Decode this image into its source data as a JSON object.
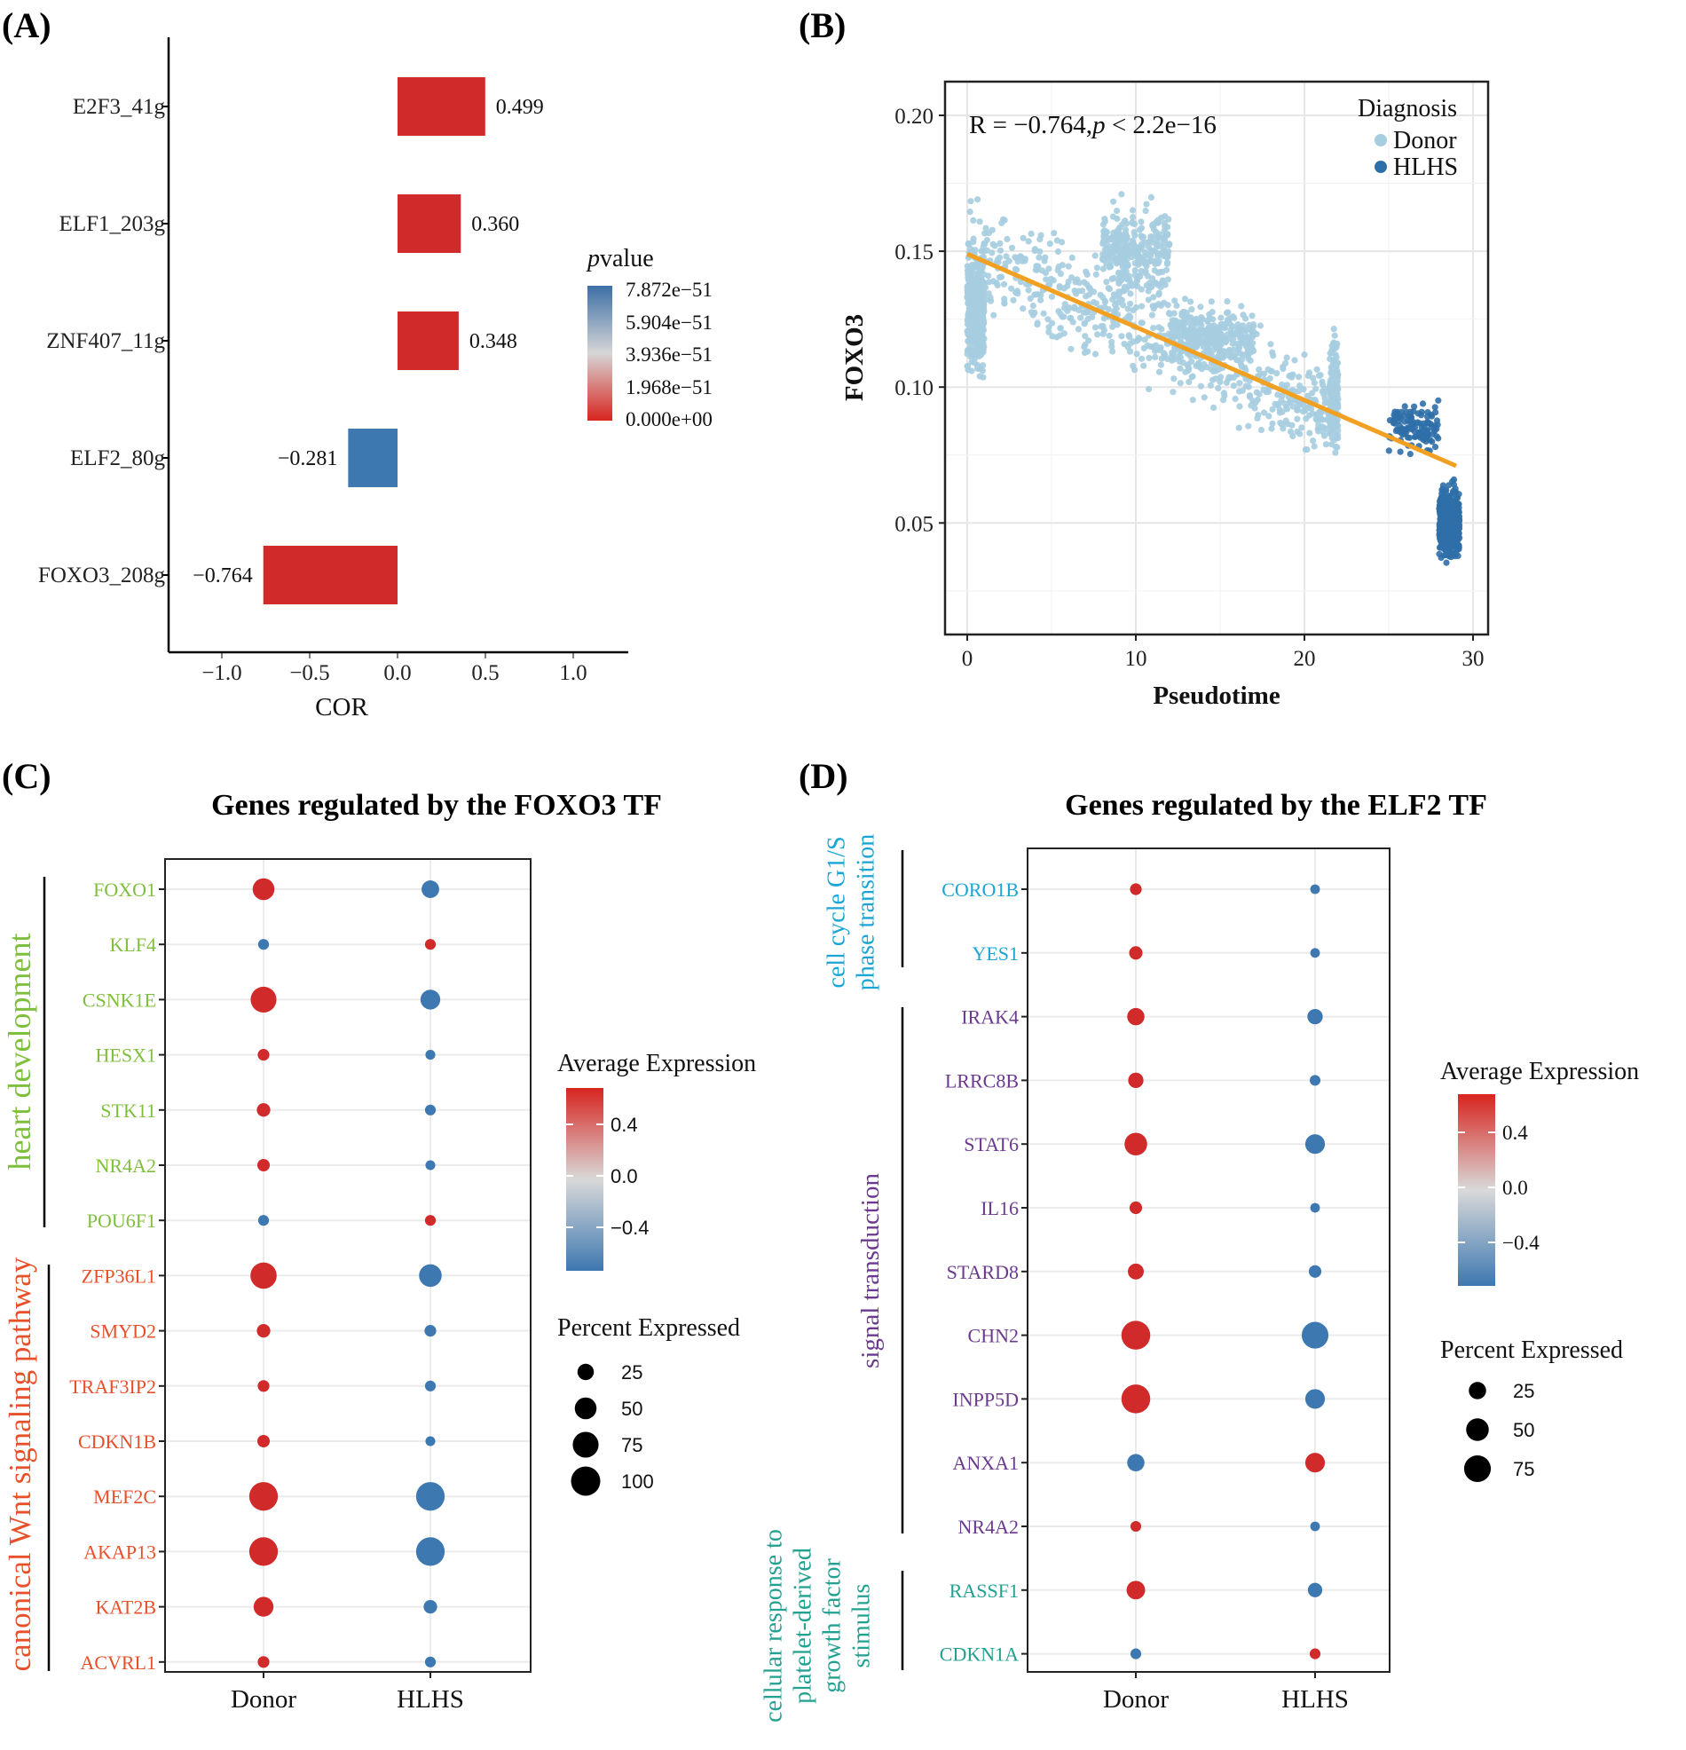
{
  "panels": {
    "A": "(A)",
    "B": "(B)",
    "C": "(C)",
    "D": "(D)"
  },
  "colors": {
    "red": "#D12A2A",
    "blue": "#3D78B0",
    "donor_point": "#A6CDE0",
    "hlhs_point": "#2F6FA8",
    "fit_line": "#F2A022",
    "green": "#7FBF3E",
    "orange": "#E8502A",
    "cyan": "#1BA5D6",
    "purple": "#6B3A8E",
    "teal": "#22A090"
  },
  "chart_data": [
    {
      "id": "A",
      "type": "bar",
      "orientation": "horizontal",
      "categories": [
        "E2F3_41g",
        "ELF1_203g",
        "ZNF407_11g",
        "ELF2_80g",
        "FOXO3_208g"
      ],
      "values": [
        0.499,
        0.36,
        0.348,
        -0.281,
        -0.764
      ],
      "value_labels": [
        "0.499",
        "0.360",
        "0.348",
        "−0.281",
        "−0.764"
      ],
      "fill": [
        "red",
        "red",
        "red",
        "blue",
        "red"
      ],
      "xlabel": "COR",
      "xlim": [
        -1.3,
        1.3
      ],
      "xticks": [
        -1.0,
        -0.5,
        0.0,
        0.5,
        1.0
      ],
      "xtick_labels": [
        "−1.0",
        "−0.5",
        "0.0",
        "0.5",
        "1.0"
      ],
      "legend": {
        "title_italic": "p",
        "title_rest": "value",
        "labels": [
          "7.872e−51",
          "5.904e−51",
          "3.936e−51",
          "1.968e−51",
          "0.000e+00"
        ]
      }
    },
    {
      "id": "B",
      "type": "scatter",
      "xlabel": "Pseudotime",
      "ylabel": "FOXO3",
      "xlim": [
        -1.5,
        31.5
      ],
      "ylim": [
        0.013,
        0.21
      ],
      "xticks": [
        0,
        10,
        20,
        30
      ],
      "xtick_labels": [
        "0",
        "10",
        "20",
        "30"
      ],
      "yticks": [
        0.05,
        0.1,
        0.15,
        0.2
      ],
      "ytick_labels": [
        "0.05",
        "0.10",
        "0.15",
        "0.20"
      ],
      "annotation": {
        "r_text": "R = −0.764,",
        "p_italic": "p",
        "p_rest": " < 2.2e−16"
      },
      "fit_line": {
        "x": [
          0,
          29
        ],
        "y": [
          0.149,
          0.071
        ]
      },
      "legend": {
        "title": "Diagnosis",
        "entries": [
          "Donor",
          "HLHS"
        ]
      },
      "series": [
        {
          "name": "Donor",
          "clusters": [
            {
              "x": [
                0,
                1.0
              ],
              "y_center": 0.128,
              "y_spread": 0.024,
              "n": 420
            },
            {
              "x": [
                0,
                22
              ],
              "y_center": 0.118,
              "y_spread": 0.022,
              "n": 650
            },
            {
              "x": [
                8,
                12
              ],
              "y_center": 0.15,
              "y_spread": 0.018,
              "n": 320
            },
            {
              "x": [
                12,
                17
              ],
              "y_center": 0.118,
              "y_spread": 0.012,
              "n": 300
            },
            {
              "x": [
                21.5,
                22.0
              ],
              "y_center": 0.1,
              "y_spread": 0.024,
              "n": 160
            }
          ]
        },
        {
          "name": "HLHS",
          "clusters": [
            {
              "x": [
                25,
                28
              ],
              "y_center": 0.085,
              "y_spread": 0.011,
              "n": 120
            },
            {
              "x": [
                28,
                29.2
              ],
              "y_center": 0.05,
              "y_spread": 0.014,
              "n": 560
            }
          ]
        }
      ]
    },
    {
      "id": "C",
      "type": "dotplot",
      "title": "Genes regulated by the FOXO3 TF",
      "categories": [
        "Donor",
        "HLHS"
      ],
      "genes": [
        "FOXO1",
        "KLF4",
        "CSNK1E",
        "HESX1",
        "STK11",
        "NR4A2",
        "POU6F1",
        "ZFP36L1",
        "SMYD2",
        "TRAF3IP2",
        "CDKN1B",
        "MEF2C",
        "AKAP13",
        "KAT2B",
        "ACVRL1"
      ],
      "gene_group": [
        "heart",
        "heart",
        "heart",
        "heart",
        "heart",
        "heart",
        "heart",
        "wnt",
        "wnt",
        "wnt",
        "wnt",
        "wnt",
        "wnt",
        "wnt",
        "wnt"
      ],
      "groups": {
        "heart": {
          "label": "heart development",
          "color": "green"
        },
        "wnt": {
          "label": "canonical Wnt signaling pathway",
          "color": "orange"
        }
      },
      "donor_pct": [
        50,
        8,
        75,
        10,
        15,
        12,
        8,
        78,
        15,
        10,
        12,
        95,
        95,
        40,
        10
      ],
      "donor_expr": [
        0.7,
        -0.7,
        0.7,
        0.7,
        0.7,
        0.7,
        -0.7,
        0.7,
        0.7,
        0.7,
        0.7,
        0.7,
        0.7,
        0.7,
        0.7
      ],
      "hlhs_pct": [
        30,
        8,
        40,
        6,
        8,
        6,
        8,
        55,
        10,
        8,
        6,
        95,
        95,
        15,
        8
      ],
      "hlhs_expr": [
        -0.7,
        0.7,
        -0.7,
        -0.7,
        -0.7,
        -0.7,
        0.7,
        -0.7,
        -0.7,
        -0.7,
        -0.7,
        -0.7,
        -0.7,
        -0.7,
        -0.7
      ],
      "legend_expr": {
        "title": "Average Expression",
        "ticks": [
          0.4,
          0.0,
          -0.4
        ],
        "tick_labels": [
          "0.4",
          "0.0",
          "−0.4"
        ]
      },
      "legend_size": {
        "title": "Percent Expressed",
        "values": [
          25,
          50,
          75,
          100
        ],
        "labels": [
          "25",
          "50",
          "75",
          "100"
        ]
      }
    },
    {
      "id": "D",
      "type": "dotplot",
      "title": "Genes regulated by the ELF2 TF",
      "categories": [
        "Donor",
        "HLHS"
      ],
      "genes": [
        "CORO1B",
        "YES1",
        "IRAK4",
        "LRRC8B",
        "STAT6",
        "IL16",
        "STARD8",
        "CHN2",
        "INPP5D",
        "ANXA1",
        "NR4A2",
        "RASSF1",
        "CDKN1A"
      ],
      "gene_group": [
        "cell",
        "cell",
        "sig",
        "sig",
        "sig",
        "sig",
        "sig",
        "sig",
        "sig",
        "sig",
        "sig",
        "pdgf",
        "pdgf"
      ],
      "groups": {
        "cell": {
          "label_lines": [
            "cell cycle G1/S",
            "phase transition"
          ],
          "color": "cyan"
        },
        "sig": {
          "label_lines": [
            "signal transduction"
          ],
          "color": "purple"
        },
        "pdgf": {
          "label_lines": [
            "cellular response to",
            "platelet-derived",
            "growth factor",
            "stimulus"
          ],
          "color": "teal"
        }
      },
      "donor_pct": [
        8,
        12,
        25,
        18,
        50,
        10,
        20,
        90,
        90,
        25,
        6,
        30,
        6
      ],
      "donor_expr": [
        0.7,
        0.7,
        0.7,
        0.7,
        0.7,
        0.7,
        0.7,
        0.7,
        0.7,
        -0.7,
        0.7,
        0.7,
        -0.7
      ],
      "hlhs_pct": [
        4,
        4,
        18,
        6,
        35,
        4,
        10,
        75,
        35,
        35,
        4,
        15,
        6
      ],
      "hlhs_expr": [
        -0.7,
        -0.7,
        -0.7,
        -0.7,
        -0.7,
        -0.7,
        -0.7,
        -0.7,
        -0.7,
        0.7,
        -0.7,
        -0.7,
        0.7
      ],
      "legend_expr": {
        "title": "Average Expression",
        "ticks": [
          0.4,
          0.0,
          -0.4
        ],
        "tick_labels": [
          "0.4",
          "0.0",
          "−0.4"
        ]
      },
      "legend_size": {
        "title": "Percent Expressed",
        "values": [
          25,
          50,
          75
        ],
        "labels": [
          "25",
          "50",
          "75"
        ]
      }
    }
  ]
}
